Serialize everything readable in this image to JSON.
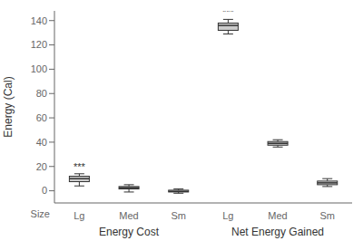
{
  "chart_data": {
    "type": "box",
    "ylabel": "Energy (Cal)",
    "xlabel": "Size",
    "ylim": [
      -10,
      148
    ],
    "yticks": [
      0,
      20,
      40,
      60,
      80,
      100,
      120,
      140
    ],
    "color": "#cccccc",
    "groups": [
      {
        "label": "Energy Cost",
        "categories": [
          "Lg",
          "Med",
          "Sm"
        ],
        "q1": [
          7.5,
          1.5,
          -1
        ],
        "median": [
          10,
          2.5,
          -0.5
        ],
        "q3": [
          12,
          3.5,
          0.5
        ],
        "whislo": [
          4,
          -1,
          -2
        ],
        "whishi": [
          14,
          5,
          1.5
        ],
        "annotations": [
          "***",
          null,
          null
        ]
      },
      {
        "label": "Net Energy Gained",
        "categories": [
          "Lg",
          "Med",
          "Sm"
        ],
        "q1": [
          132,
          37.5,
          5
        ],
        "median": [
          136,
          39,
          6.5
        ],
        "q3": [
          138,
          40.5,
          8
        ],
        "whislo": [
          129,
          36,
          3.5
        ],
        "whishi": [
          141,
          42,
          10
        ],
        "annotations": [
          "***",
          null,
          null
        ]
      }
    ]
  }
}
